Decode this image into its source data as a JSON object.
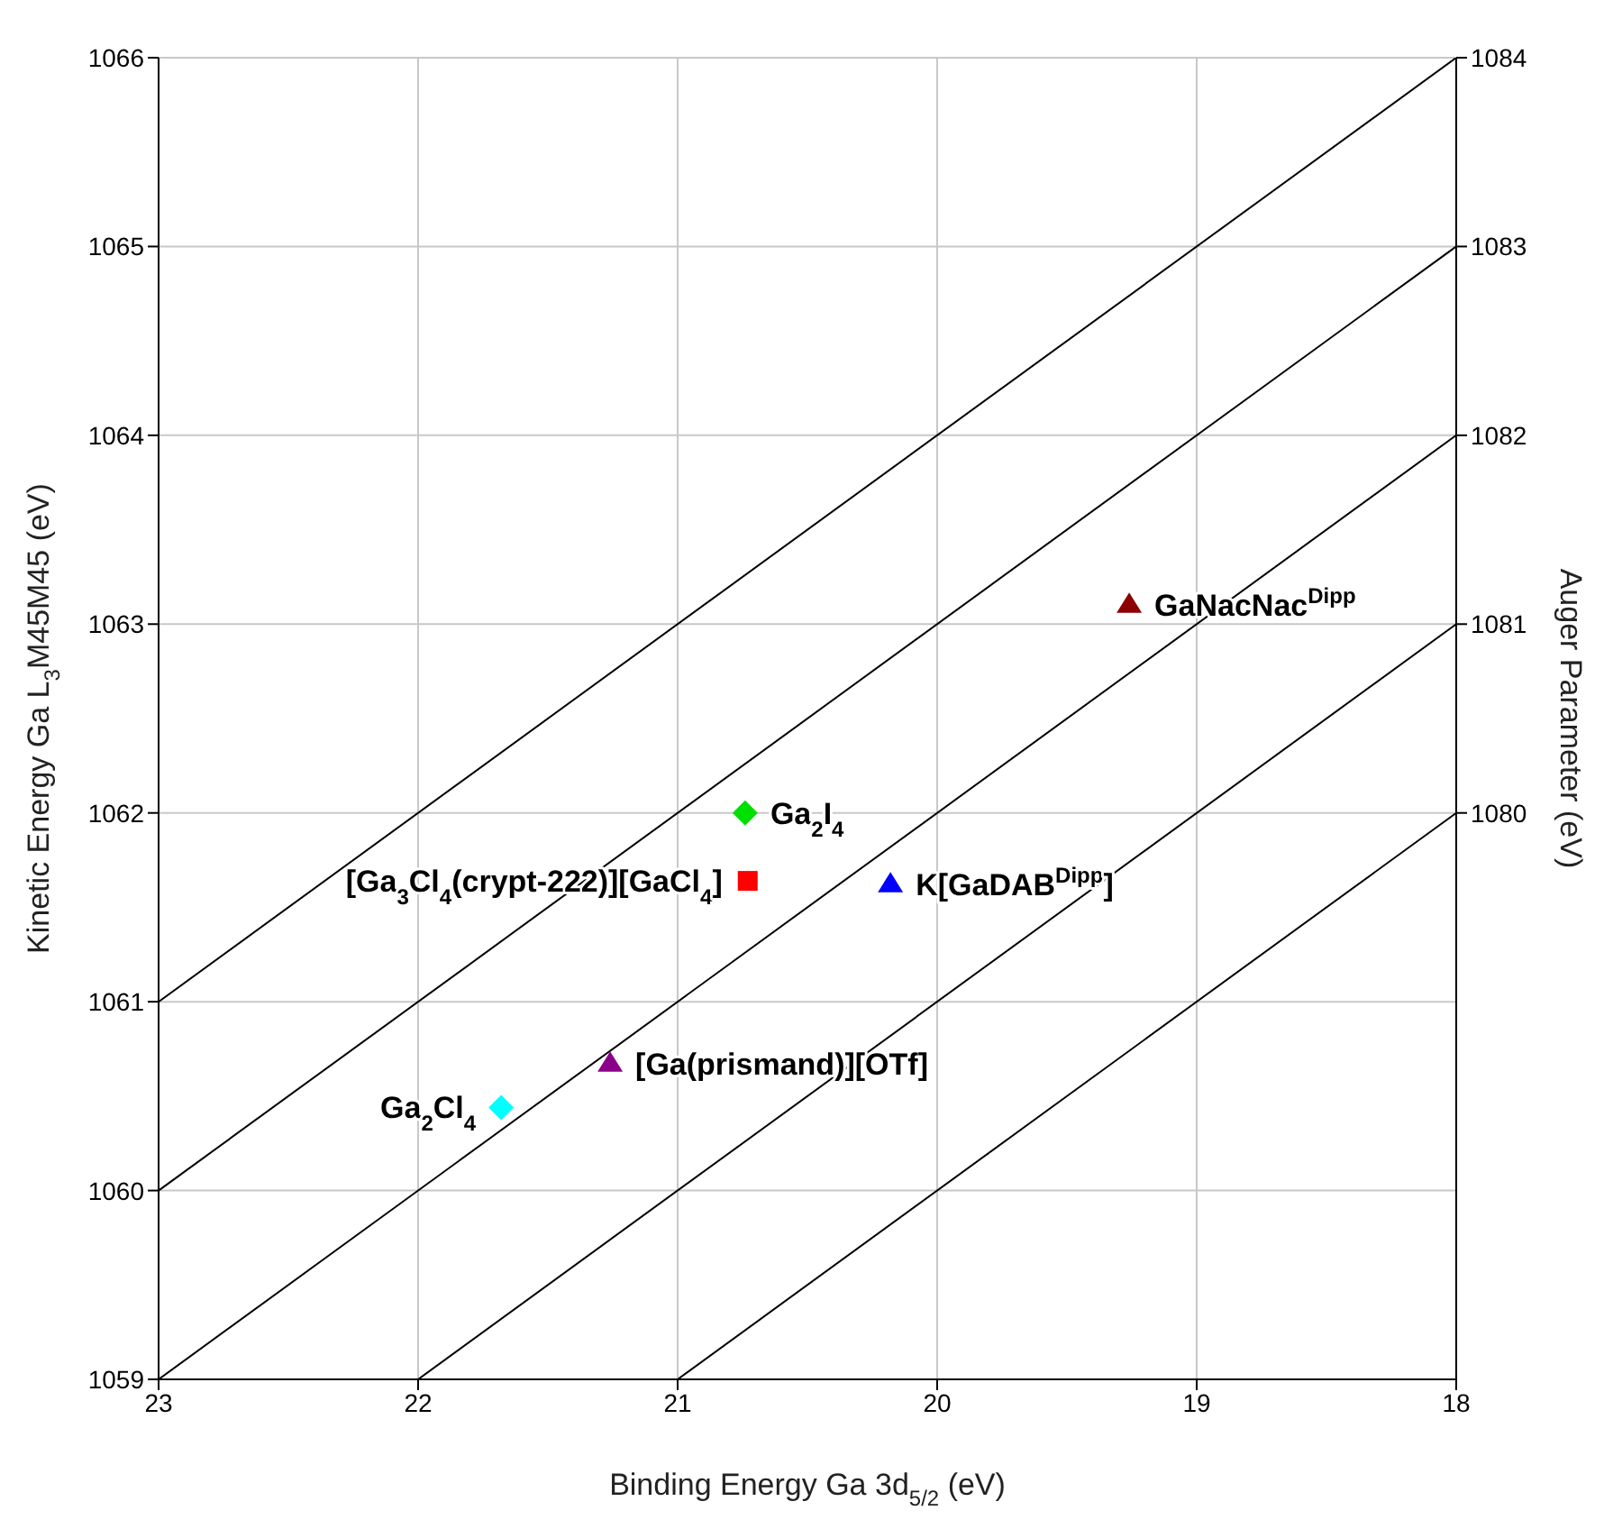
{
  "chart_data": {
    "type": "scatter",
    "xlabel": "Binding Energy Ga 3d$_{5/2}$ (eV)",
    "ylabel": "Kinetic Energy Ga L$_{3}$M45M45 (eV)",
    "y2label": "Auger Parameter (eV)",
    "xlim": [
      23,
      18
    ],
    "xticks": [
      23,
      22,
      21,
      20,
      19,
      18
    ],
    "ylim": [
      1059,
      1066
    ],
    "yticks": [
      1059,
      1060,
      1061,
      1062,
      1063,
      1064,
      1065,
      1066
    ],
    "y2lim": [
      1077,
      1084
    ],
    "y2ticks": [
      1080,
      1081,
      1082,
      1083,
      1084
    ],
    "grid": true,
    "legend": false,
    "series": [
      {
        "type": "line",
        "color": "#000000",
        "marker": "none",
        "x": [
          23,
          18
        ],
        "values": [
          1061,
          1066
        ]
      },
      {
        "type": "line",
        "color": "#000000",
        "marker": "none",
        "x": [
          23,
          18
        ],
        "values": [
          1060,
          1065
        ]
      },
      {
        "type": "line",
        "color": "#000000",
        "marker": "none",
        "x": [
          23,
          18
        ],
        "values": [
          1059,
          1064
        ]
      },
      {
        "type": "line",
        "color": "#000000",
        "marker": "none",
        "x": [
          22,
          18
        ],
        "values": [
          1059,
          1063
        ]
      },
      {
        "type": "line",
        "color": "#000000",
        "marker": "none",
        "x": [
          21,
          18
        ],
        "values": [
          1059,
          1062
        ]
      },
      {
        "name": "GaNacNac$^{Dipp}$",
        "color": "#8b0000",
        "marker": "triangle",
        "x": [
          19.26
        ],
        "values": [
          1063.1
        ]
      },
      {
        "name": "Ga$_{2}$I$_{4}$",
        "color": "#00e000",
        "marker": "diamond",
        "x": [
          20.74
        ],
        "values": [
          1062.0
        ]
      },
      {
        "name": "[Ga$_{3}$Cl$_{4}$(crypt-222)][GaCl$_{4}$]",
        "color": "#ff0000",
        "marker": "square",
        "x": [
          20.73
        ],
        "values": [
          1061.64
        ]
      },
      {
        "name": "K[GaDAB$^{Dipp}$]",
        "color": "#0000ff",
        "marker": "triangle",
        "x": [
          20.18
        ],
        "values": [
          1061.62
        ]
      },
      {
        "name": "[Ga(prismand)][OTf]",
        "color": "#8b008b",
        "marker": "triangle",
        "x": [
          21.26
        ],
        "values": [
          1060.67
        ]
      },
      {
        "name": "Ga$_{2}$Cl$_{4}$",
        "color": "#00ffff",
        "marker": "diamond",
        "x": [
          21.68
        ],
        "values": [
          1060.44
        ]
      }
    ]
  }
}
